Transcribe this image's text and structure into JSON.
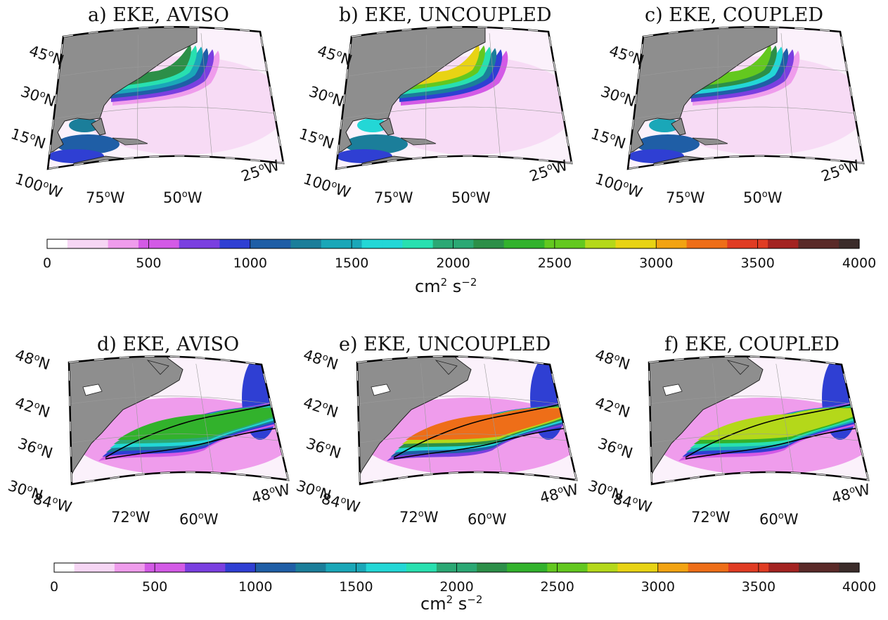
{
  "colormap": [
    "#ffffff",
    "#f6d6f4",
    "#ef9cec",
    "#d35ae6",
    "#7a3fe0",
    "#2f3fd3",
    "#1f5ea6",
    "#1b7e9a",
    "#1aa7b8",
    "#23d7d6",
    "#28e0b0",
    "#2ba874",
    "#2c8f48",
    "#32b22c",
    "#63c81f",
    "#b4d81a",
    "#e8d314",
    "#f2a312",
    "#ee6e18",
    "#e03c23",
    "#a32321",
    "#5a2a28",
    "#3b2c2a"
  ],
  "land_color": "#8e8e8e",
  "contour_color": "#000000",
  "row1": {
    "panels": [
      {
        "title": "a) EKE, AVISO",
        "variant": "aviso"
      },
      {
        "title": "b) EKE, UNCOUPLED",
        "variant": "uncoupled"
      },
      {
        "title": "c) EKE, COUPLED",
        "variant": "coupled"
      }
    ],
    "lat_labels": [
      "45oN",
      "30oN",
      "15oN"
    ],
    "lon_labels": [
      "100oW",
      "75oW",
      "50oW",
      "25oW"
    ],
    "lat_text": [
      {
        "v": "45",
        "u": "N"
      },
      {
        "v": "30",
        "u": "N"
      },
      {
        "v": "15",
        "u": "N"
      }
    ],
    "lon_text": [
      {
        "v": "100",
        "u": "W"
      },
      {
        "v": "75",
        "u": "W"
      },
      {
        "v": "50",
        "u": "W"
      },
      {
        "v": "25",
        "u": "W"
      }
    ],
    "colorbar": {
      "ticks": [
        "0",
        "500",
        "1000",
        "1500",
        "2000",
        "2500",
        "3000",
        "3500",
        "4000"
      ],
      "unit": "cm",
      "unit_exp1": "2",
      "unit_mid": "s",
      "unit_exp2": "−2"
    }
  },
  "row2": {
    "panels": [
      {
        "title": "d) EKE, AVISO",
        "variant": "aviso"
      },
      {
        "title": "e) EKE, UNCOUPLED",
        "variant": "uncoupled"
      },
      {
        "title": "f) EKE, COUPLED",
        "variant": "coupled"
      }
    ],
    "lat_text": [
      {
        "v": "48",
        "u": "N"
      },
      {
        "v": "42",
        "u": "N"
      },
      {
        "v": "36",
        "u": "N"
      },
      {
        "v": "30",
        "u": "N"
      }
    ],
    "lon_text": [
      {
        "v": "84",
        "u": "W"
      },
      {
        "v": "72",
        "u": "W"
      },
      {
        "v": "60",
        "u": "W"
      },
      {
        "v": "48",
        "u": "W"
      }
    ],
    "colorbar": {
      "ticks": [
        "0",
        "500",
        "1000",
        "1500",
        "2000",
        "2500",
        "3000",
        "3500",
        "4000"
      ],
      "unit": "cm",
      "unit_exp1": "2",
      "unit_mid": "s",
      "unit_exp2": "−2"
    }
  },
  "chart_data": [
    {
      "type": "heatmap",
      "title": "a) EKE, AVISO",
      "region": "North Atlantic",
      "lat_ticks": [
        15,
        30,
        45
      ],
      "lon_ticks": [
        -100,
        -75,
        -50,
        -25
      ],
      "colorbar_range": [
        0,
        4000
      ],
      "colorbar_ticks": [
        0,
        500,
        1000,
        1500,
        2000,
        2500,
        3000,
        3500,
        4000
      ],
      "colorbar_label": "cm2 s-2"
    },
    {
      "type": "heatmap",
      "title": "b) EKE, UNCOUPLED",
      "region": "North Atlantic",
      "lat_ticks": [
        15,
        30,
        45
      ],
      "lon_ticks": [
        -100,
        -75,
        -50,
        -25
      ],
      "colorbar_range": [
        0,
        4000
      ],
      "colorbar_label": "cm2 s-2"
    },
    {
      "type": "heatmap",
      "title": "c) EKE, COUPLED",
      "region": "North Atlantic",
      "lat_ticks": [
        15,
        30,
        45
      ],
      "lon_ticks": [
        -100,
        -75,
        -50,
        -25
      ],
      "colorbar_range": [
        0,
        4000
      ],
      "colorbar_label": "cm2 s-2"
    },
    {
      "type": "heatmap",
      "title": "d) EKE, AVISO",
      "region": "Gulf Stream",
      "lat_ticks": [
        30,
        36,
        42,
        48
      ],
      "lon_ticks": [
        -84,
        -72,
        -60,
        -48
      ],
      "colorbar_range": [
        0,
        4000
      ],
      "colorbar_ticks": [
        0,
        500,
        1000,
        1500,
        2000,
        2500,
        3000,
        3500,
        4000
      ],
      "colorbar_label": "cm2 s-2"
    },
    {
      "type": "heatmap",
      "title": "e) EKE, UNCOUPLED",
      "region": "Gulf Stream",
      "lat_ticks": [
        30,
        36,
        42,
        48
      ],
      "lon_ticks": [
        -84,
        -72,
        -60,
        -48
      ],
      "colorbar_range": [
        0,
        4000
      ],
      "colorbar_label": "cm2 s-2"
    },
    {
      "type": "heatmap",
      "title": "f) EKE, COUPLED",
      "region": "Gulf Stream",
      "lat_ticks": [
        30,
        36,
        42,
        48
      ],
      "lon_ticks": [
        -84,
        -72,
        -60,
        -48
      ],
      "colorbar_range": [
        0,
        4000
      ],
      "colorbar_label": "cm2 s-2"
    }
  ]
}
